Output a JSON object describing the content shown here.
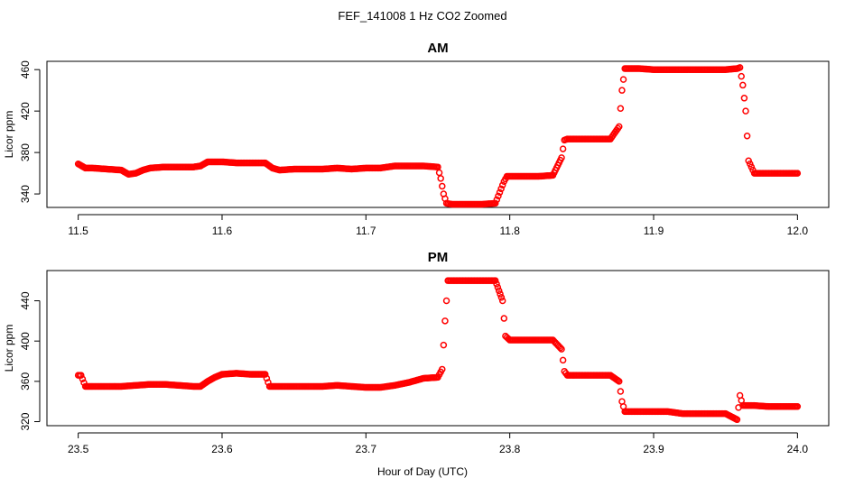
{
  "title": "FEF_141008  1 Hz CO2 Zoomed",
  "xlabel": "Hour of Day (UTC)",
  "colors": {
    "points": "#ff0000",
    "axes": "#000000",
    "background": "#ffffff"
  },
  "chart_data": [
    {
      "type": "scatter",
      "title": "AM",
      "ylabel": "Licor ppm",
      "xlim": [
        11.5,
        12.0
      ],
      "ylim": [
        327,
        468
      ],
      "xticks": [
        "11.5",
        "11.6",
        "11.7",
        "11.8",
        "11.9",
        "12.0"
      ],
      "yticks": [
        "340",
        "380",
        "420",
        "460"
      ],
      "xtick_values": [
        11.5,
        11.6,
        11.7,
        11.8,
        11.9,
        12.0
      ],
      "ytick_values": [
        340,
        380,
        420,
        460
      ],
      "grid": false,
      "marker": "open-circle",
      "x": [
        11.5,
        11.505,
        11.51,
        11.52,
        11.53,
        11.535,
        11.54,
        11.545,
        11.55,
        11.56,
        11.57,
        11.58,
        11.585,
        11.59,
        11.6,
        11.61,
        11.62,
        11.63,
        11.635,
        11.64,
        11.65,
        11.66,
        11.67,
        11.68,
        11.69,
        11.7,
        11.71,
        11.72,
        11.73,
        11.74,
        11.75,
        11.752,
        11.754,
        11.756,
        11.76,
        11.77,
        11.78,
        11.79,
        11.794,
        11.796,
        11.798,
        11.8,
        11.81,
        11.82,
        11.83,
        11.836,
        11.838,
        11.84,
        11.85,
        11.86,
        11.87,
        11.876,
        11.878,
        11.88,
        11.89,
        11.9,
        11.91,
        11.92,
        11.93,
        11.94,
        11.95,
        11.958,
        11.96,
        11.962,
        11.964,
        11.966,
        11.97,
        11.98,
        11.99,
        12.0
      ],
      "y": [
        369,
        365,
        365,
        364,
        363,
        359,
        360,
        363,
        365,
        366,
        366,
        366,
        367,
        371,
        371,
        370,
        370,
        370,
        365,
        363,
        364,
        364,
        364,
        365,
        364,
        365,
        365,
        367,
        367,
        367,
        366,
        355,
        340,
        331,
        330,
        330,
        330,
        331,
        345,
        352,
        357,
        357,
        357,
        357,
        358,
        375,
        392,
        393,
        393,
        393,
        393,
        405,
        440,
        461,
        461,
        460,
        460,
        460,
        460,
        460,
        460,
        461,
        462,
        445,
        420,
        372,
        360,
        360,
        360,
        360
      ]
    },
    {
      "type": "scatter",
      "title": "PM",
      "ylabel": "Licor ppm",
      "xlim": [
        23.5,
        24.0
      ],
      "ylim": [
        316,
        470
      ],
      "xticks": [
        "23.5",
        "23.6",
        "23.7",
        "23.8",
        "23.9",
        "24.0"
      ],
      "yticks": [
        "320",
        "360",
        "400",
        "440"
      ],
      "xtick_values": [
        23.5,
        23.6,
        23.7,
        23.8,
        23.9,
        24.0
      ],
      "ytick_values": [
        320,
        360,
        400,
        440
      ],
      "grid": false,
      "marker": "open-circle",
      "x": [
        23.5,
        23.502,
        23.505,
        23.51,
        23.52,
        23.53,
        23.54,
        23.55,
        23.56,
        23.57,
        23.58,
        23.585,
        23.59,
        23.595,
        23.6,
        23.61,
        23.62,
        23.63,
        23.633,
        23.64,
        23.65,
        23.66,
        23.67,
        23.68,
        23.69,
        23.7,
        23.71,
        23.72,
        23.73,
        23.74,
        23.75,
        23.753,
        23.755,
        23.757,
        23.76,
        23.77,
        23.78,
        23.79,
        23.795,
        23.797,
        23.8,
        23.81,
        23.82,
        23.83,
        23.836,
        23.838,
        23.84,
        23.85,
        23.86,
        23.87,
        23.876,
        23.878,
        23.88,
        23.89,
        23.9,
        23.91,
        23.92,
        23.93,
        23.94,
        23.95,
        23.958,
        23.96,
        23.962,
        23.97,
        23.98,
        23.99,
        24.0
      ],
      "y": [
        366,
        366,
        355,
        355,
        355,
        355,
        356,
        357,
        357,
        356,
        355,
        355,
        360,
        364,
        367,
        368,
        367,
        367,
        355,
        355,
        355,
        355,
        355,
        356,
        355,
        354,
        354,
        356,
        359,
        363,
        364,
        372,
        420,
        460,
        460,
        460,
        460,
        460,
        440,
        405,
        401,
        401,
        401,
        401,
        392,
        370,
        366,
        366,
        366,
        366,
        360,
        340,
        330,
        330,
        330,
        330,
        328,
        328,
        328,
        328,
        322,
        346,
        336,
        336,
        335,
        335,
        335
      ]
    }
  ]
}
